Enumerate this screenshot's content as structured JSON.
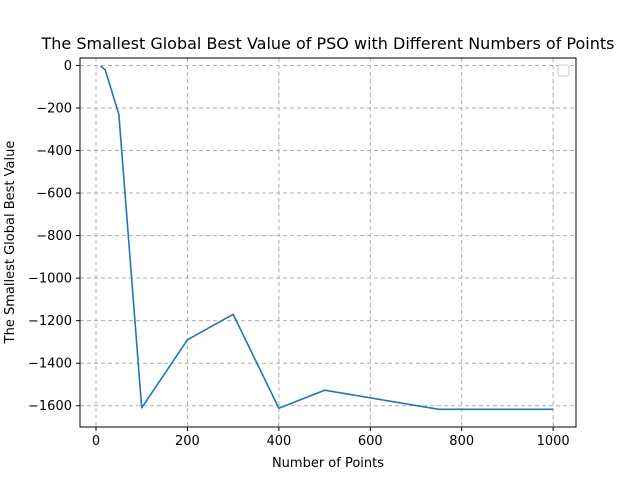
{
  "chart_data": {
    "type": "line",
    "title": "The Smallest Global Best Value of PSO with Different Numbers of Points",
    "xlabel": "Number of Points",
    "ylabel": "The Smallest Global Best Value",
    "xlim": [
      -35,
      1050
    ],
    "ylim": [
      -1700,
      35
    ],
    "xticks": [
      0,
      200,
      400,
      600,
      800,
      1000
    ],
    "yticks": [
      0,
      -200,
      -400,
      -600,
      -800,
      -1000,
      -1200,
      -1400,
      -1600
    ],
    "grid": true,
    "legend": "top-right",
    "series": [
      {
        "color": "#1f77b4",
        "x": [
          10,
          20,
          50,
          100,
          200,
          300,
          400,
          500,
          750,
          1000
        ],
        "y": [
          -3,
          -20,
          -230,
          -1610,
          -1290,
          -1170,
          -1612,
          -1527,
          -1617,
          -1617
        ]
      }
    ]
  }
}
